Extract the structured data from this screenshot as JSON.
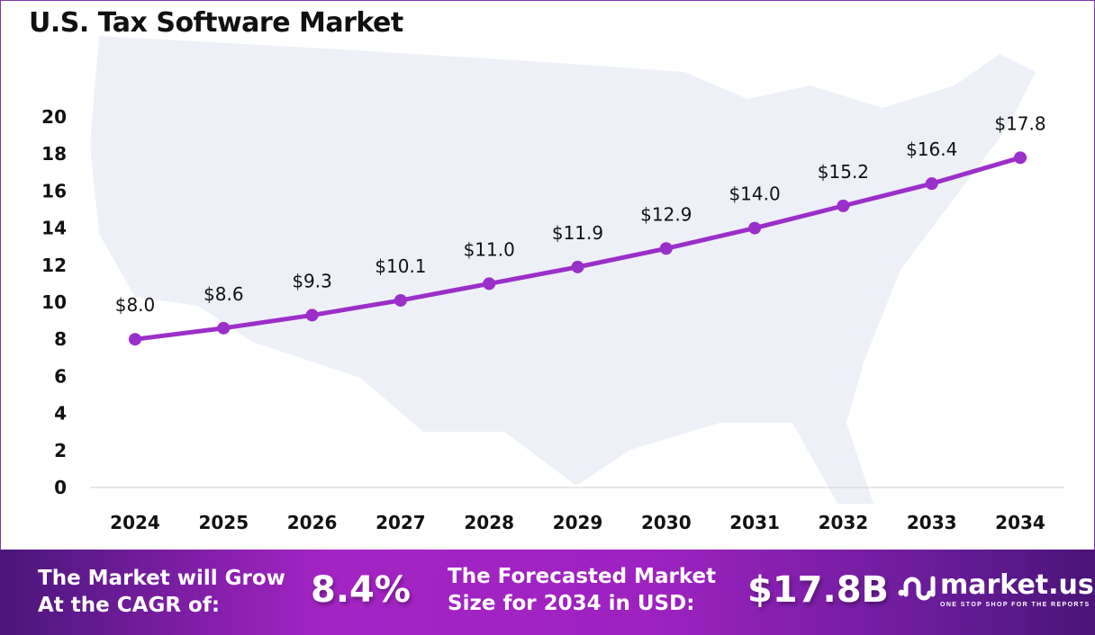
{
  "chart_data": {
    "type": "line",
    "title": "U.S. Tax Software Market",
    "categories": [
      "2024",
      "2025",
      "2026",
      "2027",
      "2028",
      "2029",
      "2030",
      "2031",
      "2032",
      "2033",
      "2034"
    ],
    "values": [
      8.0,
      8.6,
      9.3,
      10.1,
      11.0,
      11.9,
      12.9,
      14.0,
      15.2,
      16.4,
      17.8
    ],
    "data_labels": [
      "$8.0",
      "$8.6",
      "$9.3",
      "$10.1",
      "$11.0",
      "$11.9",
      "$12.9",
      "$14.0",
      "$15.2",
      "$16.4",
      "$17.8"
    ],
    "yticks": [
      "0",
      "2",
      "4",
      "6",
      "8",
      "10",
      "12",
      "14",
      "16",
      "18",
      "20"
    ],
    "ylim": [
      0,
      20
    ],
    "grid": false,
    "line_color": "#9b2fc9"
  },
  "banner": {
    "cagr_label_1": "The Market will Grow",
    "cagr_label_2": "At the CAGR of:",
    "cagr_value": "8.4%",
    "forecast_label_1": "The Forecasted Market",
    "forecast_label_2": "Size for 2034 in USD:",
    "forecast_value": "$17.8B",
    "logo_name": "market.us",
    "logo_tagline": "ONE STOP SHOP FOR THE REPORTS"
  }
}
